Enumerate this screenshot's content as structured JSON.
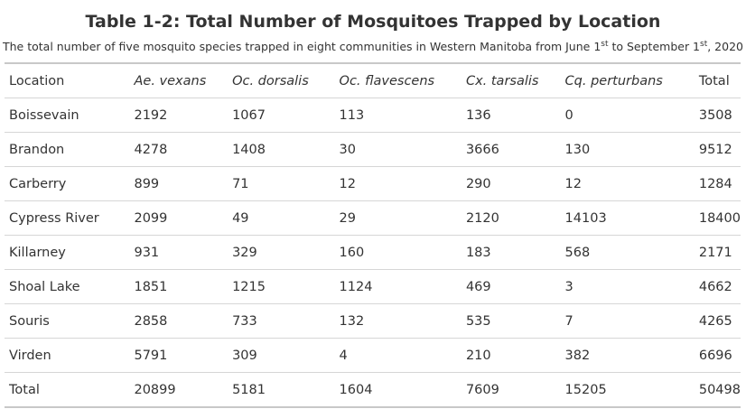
{
  "title": "Table 1-2: Total Number of Mosquitoes Trapped by Location",
  "subtitle": {
    "part1": "The total number of five mosquito species trapped in eight communities in Western Manitoba from June 1",
    "sup1": "st",
    "part2": " to September 1",
    "sup2": "st",
    "part3": ", 2020"
  },
  "table": {
    "headers": [
      "Location",
      "Ae. vexans",
      "Oc. dorsalis",
      "Oc. flavescens",
      "Cx. tarsalis",
      "Cq. perturbans",
      "Total"
    ],
    "rows": [
      [
        "Boissevain",
        "2192",
        "1067",
        "113",
        "136",
        "0",
        "3508"
      ],
      [
        "Brandon",
        "4278",
        "1408",
        "30",
        "3666",
        "130",
        "9512"
      ],
      [
        "Carberry",
        "899",
        "71",
        "12",
        "290",
        "12",
        "1284"
      ],
      [
        "Cypress River",
        "2099",
        "49",
        "29",
        "2120",
        "14103",
        "18400"
      ],
      [
        "Killarney",
        "931",
        "329",
        "160",
        "183",
        "568",
        "2171"
      ],
      [
        "Shoal Lake",
        "1851",
        "1215",
        "1124",
        "469",
        "3",
        "4662"
      ],
      [
        "Souris",
        "2858",
        "733",
        "132",
        "535",
        "7",
        "4265"
      ],
      [
        "Virden",
        "5791",
        "309",
        "4",
        "210",
        "382",
        "6696"
      ],
      [
        "Total",
        "20899",
        "5181",
        "1604",
        "7609",
        "15205",
        "50498"
      ]
    ]
  }
}
